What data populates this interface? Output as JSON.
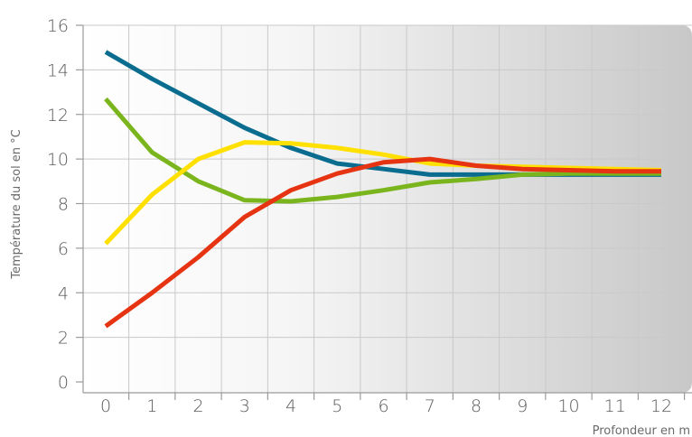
{
  "chart_data": {
    "type": "line",
    "title": "",
    "xlabel": "Profondeur en m",
    "ylabel": "Température du sol en °C",
    "x": [
      0,
      1,
      2,
      3,
      4,
      5,
      6,
      7,
      8,
      9,
      10,
      11,
      12
    ],
    "xlim": [
      -0.5,
      12.5
    ],
    "ylim": [
      0,
      16
    ],
    "xticks": [
      "0",
      "1",
      "2",
      "3",
      "4",
      "5",
      "6",
      "7",
      "8",
      "9",
      "10",
      "11",
      "12"
    ],
    "yticks": [
      "0",
      "2",
      "4",
      "6",
      "8",
      "10",
      "12",
      "14",
      "16"
    ],
    "grid": true,
    "legend": "none",
    "series": [
      {
        "color": "#0a6d8f",
        "values": [
          14.8,
          13.6,
          12.5,
          11.4,
          10.5,
          9.8,
          9.55,
          9.3,
          9.3,
          9.3,
          9.3,
          9.3,
          9.3
        ]
      },
      {
        "color": "#7ab51d",
        "values": [
          12.7,
          10.3,
          9.0,
          8.15,
          8.1,
          8.3,
          8.6,
          8.95,
          9.1,
          9.3,
          9.35,
          9.35,
          9.35
        ]
      },
      {
        "color": "#ffe000",
        "values": [
          6.2,
          8.4,
          10.0,
          10.75,
          10.7,
          10.5,
          10.2,
          9.8,
          9.7,
          9.65,
          9.6,
          9.55,
          9.5
        ]
      },
      {
        "color": "#e63312",
        "values": [
          2.5,
          4.0,
          5.6,
          7.4,
          8.6,
          9.35,
          9.85,
          10.0,
          9.7,
          9.55,
          9.5,
          9.45,
          9.45
        ]
      }
    ]
  }
}
